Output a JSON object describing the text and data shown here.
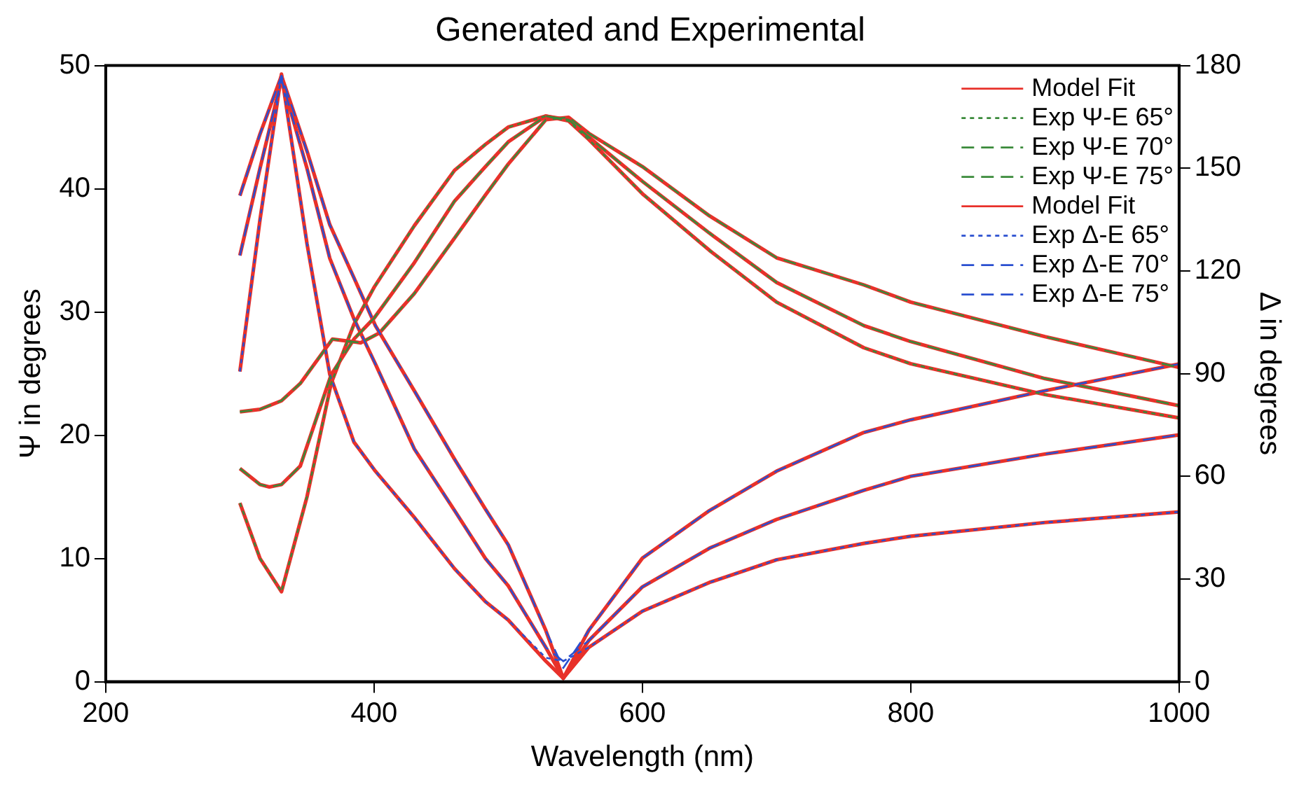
{
  "chart_data": {
    "type": "line",
    "title": "Generated and Experimental",
    "xlabel": "Wavelength (nm)",
    "ylabel": "Ψ in degrees",
    "y2label": "Δ in degrees",
    "xlim": [
      200,
      1000
    ],
    "xticks": [
      200,
      400,
      600,
      800,
      1000
    ],
    "ylim": [
      0,
      50
    ],
    "yticks": [
      0,
      10,
      20,
      30,
      40,
      50
    ],
    "y2lim": [
      0,
      180
    ],
    "y2ticks": [
      0,
      30,
      60,
      90,
      120,
      150,
      180
    ],
    "legend": "top right",
    "grid": false,
    "marker": "none",
    "series": [
      {
        "name": "Model Fit",
        "color": "#e8312a",
        "line_style": "solid",
        "x": [
          300,
          315,
          331,
          350,
          368,
          385,
          400,
          430,
          460,
          483,
          500,
          528,
          545,
          560,
          600,
          650,
          700,
          765,
          800,
          900,
          1000
        ],
        "values": [
          14.5,
          10,
          7.3,
          15,
          24.2,
          29,
          32,
          37,
          41.5,
          43.6,
          45,
          45.9,
          45.5,
          44,
          39.6,
          35,
          30.8,
          27.1,
          25.8,
          23.3,
          21.4
        ]
      },
      {
        "name": "Exp Ψ-E 65°",
        "color": "#3a8a3a",
        "line_style": "dotted",
        "x": [
          300,
          315,
          331,
          350,
          368,
          385,
          400,
          430,
          460,
          483,
          500,
          528,
          545,
          560,
          600,
          650,
          700,
          765,
          800,
          900,
          1000
        ],
        "values": [
          14.5,
          10,
          7.3,
          15,
          24.2,
          29,
          32,
          37,
          41.5,
          43.6,
          45,
          45.9,
          45.5,
          44,
          39.6,
          35,
          30.8,
          27.1,
          25.8,
          23.3,
          21.4
        ]
      },
      {
        "name": "Exp Ψ-E 70°",
        "color": "#3a8a3a",
        "line_style": "dashed",
        "x": [
          300,
          315,
          322,
          331,
          345,
          368,
          385,
          400,
          430,
          460,
          483,
          500,
          528,
          545,
          560,
          600,
          650,
          700,
          765,
          800,
          900,
          1000
        ],
        "values": [
          17.3,
          16,
          15.8,
          16,
          17.5,
          24.9,
          27.8,
          29.5,
          34,
          39,
          41.8,
          43.8,
          45.9,
          45.6,
          44.2,
          40.6,
          36.4,
          32.4,
          28.9,
          27.6,
          24.6,
          22.4
        ]
      },
      {
        "name": "Exp Ψ-E 75°",
        "color": "#3a8a3a",
        "line_style": "dashed",
        "x": [
          300,
          315,
          331,
          345,
          369,
          390,
          404,
          430,
          460,
          483,
          500,
          528,
          545,
          560,
          600,
          650,
          700,
          765,
          800,
          900,
          1000
        ],
        "values": [
          21.9,
          22.1,
          22.8,
          24.2,
          27.8,
          27.5,
          28.3,
          31.5,
          36,
          39.5,
          42,
          45.6,
          45.8,
          44.5,
          41.8,
          37.8,
          34.4,
          32.2,
          30.8,
          28,
          25.5
        ]
      },
      {
        "name": "Model Fit",
        "color": "#e8312a",
        "line_style": "solid",
        "axis": "y2",
        "x": [
          300,
          315,
          331,
          350,
          367,
          385,
          401,
          430,
          460,
          483,
          500,
          528,
          541,
          560,
          600,
          650,
          700,
          765,
          800,
          900,
          1000
        ],
        "values": [
          90.6,
          135,
          177.5,
          128,
          89.8,
          70,
          61.5,
          48,
          33,
          23.4,
          18,
          6,
          1,
          10,
          20.6,
          29,
          35.6,
          40.4,
          42.5,
          46.5,
          49.6
        ]
      },
      {
        "name": "Exp Δ-E 65°",
        "color": "#2a4fd0",
        "line_style": "dotted",
        "axis": "y2",
        "x": [
          300,
          315,
          331,
          350,
          367,
          385,
          401,
          430,
          460,
          483,
          500,
          528,
          541,
          560,
          600,
          650,
          700,
          765,
          800,
          900,
          1000
        ],
        "values": [
          90.6,
          135,
          177.5,
          128,
          89.8,
          70,
          61.5,
          48,
          33,
          23.4,
          18,
          7,
          6,
          10,
          20.6,
          29,
          35.6,
          40.4,
          42.5,
          46.5,
          49.6
        ]
      },
      {
        "name": "Exp Δ-E 70°",
        "color": "#2a4fd0",
        "line_style": "dashed",
        "axis": "y2",
        "x": [
          300,
          315,
          331,
          350,
          367,
          385,
          401,
          430,
          460,
          483,
          500,
          528,
          541,
          560,
          600,
          650,
          700,
          765,
          800,
          900,
          1000
        ],
        "values": [
          124.5,
          150,
          176,
          150,
          123.7,
          106,
          92.8,
          68,
          50,
          36,
          28,
          10,
          6,
          12,
          27.7,
          39,
          47.4,
          55.9,
          60,
          66.5,
          72.1
        ]
      },
      {
        "name": "Exp Δ-E 75°",
        "color": "#2a4fd0",
        "line_style": "dashed",
        "axis": "y2",
        "x": [
          300,
          315,
          331,
          350,
          367,
          385,
          401,
          430,
          460,
          483,
          500,
          528,
          541,
          560,
          600,
          650,
          700,
          765,
          800,
          900,
          1000
        ],
        "values": [
          142,
          160,
          177,
          155,
          133.5,
          118,
          104,
          85,
          65,
          50.4,
          40,
          15,
          4,
          15,
          36.1,
          50,
          61.5,
          72.8,
          76.5,
          85,
          92.8
        ]
      },
      {
        "color": "#e8312a",
        "line_style": "solid",
        "x": [
          300,
          315,
          322,
          331,
          345,
          368,
          385,
          400,
          430,
          460,
          483,
          500,
          528,
          545,
          560,
          600,
          650,
          700,
          765,
          800,
          900,
          1000
        ],
        "values": [
          17.3,
          16,
          15.8,
          16,
          17.5,
          24.9,
          27.8,
          29.5,
          34,
          39,
          41.8,
          43.8,
          45.9,
          45.6,
          44.2,
          40.6,
          36.4,
          32.4,
          28.9,
          27.6,
          24.6,
          22.4
        ]
      },
      {
        "color": "#e8312a",
        "line_style": "solid",
        "x": [
          300,
          315,
          331,
          345,
          369,
          390,
          404,
          430,
          460,
          483,
          500,
          528,
          545,
          560,
          600,
          650,
          700,
          765,
          800,
          900,
          1000
        ],
        "values": [
          21.9,
          22.1,
          22.8,
          24.2,
          27.8,
          27.5,
          28.3,
          31.5,
          36,
          39.5,
          42,
          45.6,
          45.8,
          44.5,
          41.8,
          37.8,
          34.4,
          32.2,
          30.8,
          28,
          25.5
        ]
      },
      {
        "color": "#e8312a",
        "line_style": "solid",
        "axis": "y2",
        "x": [
          300,
          315,
          331,
          350,
          367,
          385,
          401,
          430,
          460,
          483,
          500,
          528,
          541,
          560,
          600,
          650,
          700,
          765,
          800,
          900,
          1000
        ],
        "values": [
          124.5,
          150,
          176,
          150,
          123.7,
          106,
          92.8,
          68,
          50,
          36,
          28,
          10,
          1,
          12,
          27.7,
          39,
          47.4,
          55.9,
          60,
          66.5,
          72.1
        ]
      },
      {
        "color": "#e8312a",
        "line_style": "solid",
        "axis": "y2",
        "x": [
          300,
          315,
          331,
          350,
          367,
          385,
          401,
          430,
          460,
          483,
          500,
          528,
          541,
          560,
          600,
          650,
          700,
          765,
          800,
          900,
          1000
        ],
        "values": [
          142,
          160,
          177,
          155,
          133.5,
          118,
          104,
          85,
          65,
          50.4,
          40,
          15,
          1,
          15,
          36.1,
          50,
          61.5,
          72.8,
          76.5,
          85,
          92.8
        ]
      }
    ]
  }
}
